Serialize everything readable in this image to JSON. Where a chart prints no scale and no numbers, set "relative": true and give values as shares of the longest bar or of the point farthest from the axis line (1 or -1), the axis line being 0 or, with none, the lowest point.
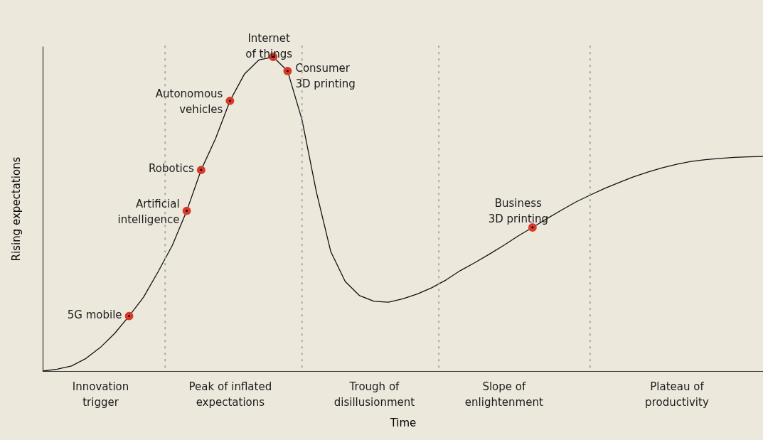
{
  "chart_data": {
    "type": "line",
    "relative": true,
    "xlabel": "Time",
    "ylabel": "Rising expectations",
    "tick_labels": "x",
    "categories": [
      null,
      null,
      null,
      null,
      "Innovation\ntrigger",
      null,
      null,
      null,
      null,
      null,
      null,
      null,
      null,
      "Peak of inflated\nexpectations",
      null,
      null,
      null,
      null,
      null,
      null,
      null,
      null,
      null,
      "Trough of\ndisillusionment",
      null,
      null,
      null,
      null,
      null,
      null,
      null,
      null,
      "Slope of\nenlightenment",
      null,
      null,
      null,
      null,
      null,
      null,
      null,
      null,
      null,
      null,
      null,
      "Plateau of\nproductivity",
      null,
      null,
      null,
      null,
      null,
      null
    ],
    "series": [
      {
        "color": "#111111",
        "values": [
          0,
          0.006,
          0.016,
          0.04,
          0.075,
          0.12,
          0.175,
          0.235,
          0.315,
          0.4,
          0.51,
          0.64,
          0.74,
          0.86,
          0.945,
          0.99,
          1,
          0.955,
          0.8,
          0.57,
          0.38,
          0.285,
          0.24,
          0.222,
          0.219,
          0.23,
          0.245,
          0.265,
          0.29,
          0.32,
          0.345,
          0.372,
          0.4,
          0.43,
          0.457,
          0.485,
          0.512,
          0.538,
          0.56,
          0.581,
          0.6,
          0.618,
          0.633,
          0.647,
          0.658,
          0.667,
          0.673,
          0.677,
          0.68,
          0.682,
          0.683
        ]
      },
      {
        "type": "scatter",
        "marker": "circle",
        "color": "#d8392b",
        "values": [
          null,
          null,
          null,
          null,
          null,
          null,
          0.175,
          null,
          null,
          null,
          0.51,
          0.64,
          null,
          0.86,
          null,
          null,
          1,
          0.955,
          null,
          null,
          null,
          null,
          null,
          null,
          null,
          null,
          null,
          null,
          null,
          null,
          null,
          null,
          null,
          null,
          0.457,
          null,
          null,
          null,
          null,
          null,
          null,
          null,
          null,
          null,
          null,
          null,
          null,
          null,
          null,
          null,
          null
        ]
      }
    ],
    "annotations": [
      "5G mobile",
      "Artificial\nintelligence",
      "Robotics",
      "Autonomous\nvehicles",
      "Internet\nof things",
      "Consumer\n3D printing",
      "Business\n3D printing"
    ]
  }
}
